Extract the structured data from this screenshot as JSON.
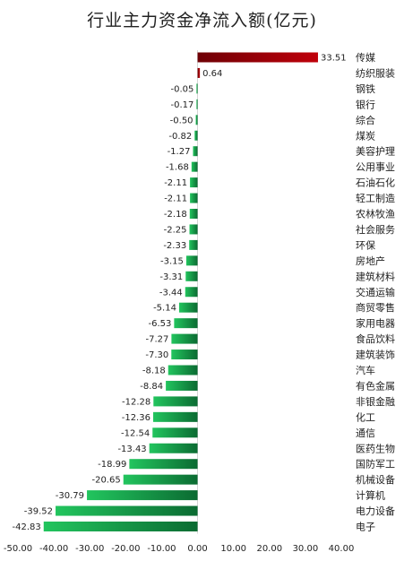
{
  "chart_data": {
    "type": "bar",
    "orientation": "horizontal",
    "title": "行业主力资金净流入额(亿元)",
    "xlim": [
      -50,
      40
    ],
    "xticks": [
      "-50.00",
      "-40.00",
      "-30.00",
      "-20.00",
      "-10.00",
      "0.00",
      "10.00",
      "20.00",
      "30.00",
      "40.00"
    ],
    "grid": false,
    "legend": "none",
    "categories": [
      "传媒",
      "纺织服装",
      "钢铁",
      "银行",
      "综合",
      "煤炭",
      "美容护理",
      "公用事业",
      "石油石化",
      "轻工制造",
      "农林牧渔",
      "社会服务",
      "环保",
      "房地产",
      "建筑材料",
      "交通运输",
      "商贸零售",
      "家用电器",
      "食品饮料",
      "建筑装饰",
      "汽车",
      "有色金属",
      "非银金融",
      "化工",
      "通信",
      "医药生物",
      "国防军工",
      "机械设备",
      "计算机",
      "电力设备",
      "电子"
    ],
    "values": [
      33.51,
      0.64,
      -0.05,
      -0.17,
      -0.5,
      -0.82,
      -1.27,
      -1.68,
      -2.11,
      -2.11,
      -2.18,
      -2.25,
      -2.33,
      -3.15,
      -3.31,
      -3.44,
      -5.14,
      -6.53,
      -7.27,
      -7.3,
      -8.18,
      -8.84,
      -12.28,
      -12.36,
      -12.54,
      -13.43,
      -18.99,
      -20.65,
      -30.79,
      -39.52,
      -42.83
    ],
    "value_labels": [
      "33.51",
      "0.64",
      "-0.05",
      "-0.17",
      "-0.50",
      "-0.82",
      "-1.27",
      "-1.68",
      "-2.11",
      "-2.11",
      "-2.18",
      "-2.25",
      "-2.33",
      "-3.15",
      "-3.31",
      "-3.44",
      "-5.14",
      "-6.53",
      "-7.27",
      "-7.30",
      "-8.18",
      "-8.84",
      "-12.28",
      "-12.36",
      "-12.54",
      "-13.43",
      "-18.99",
      "-20.65",
      "-30.79",
      "-39.52",
      "-42.83"
    ],
    "colors": {
      "positive": "#c0000a",
      "positive_dark": "#6e0005",
      "negative": "#22c55e",
      "negative_dark": "#0b6b32"
    }
  }
}
